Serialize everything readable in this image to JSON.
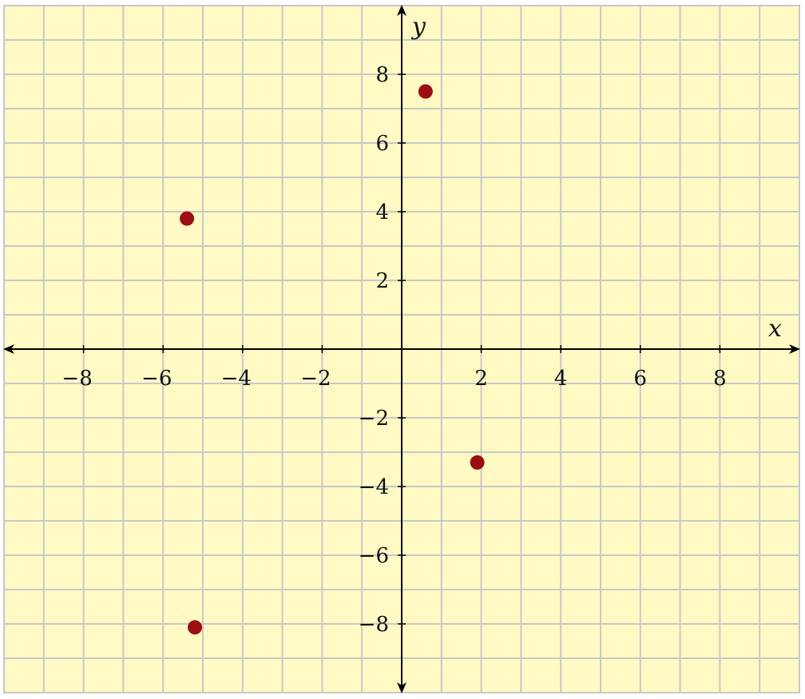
{
  "chart_data": {
    "type": "scatter",
    "xlabel": "x",
    "ylabel": "y",
    "xlim": [
      -10,
      10
    ],
    "ylim": [
      -10,
      10
    ],
    "x_ticks": [
      -8,
      -6,
      -4,
      -2,
      2,
      4,
      6,
      8
    ],
    "y_ticks": [
      -8,
      -6,
      -4,
      -2,
      2,
      4,
      6,
      8
    ],
    "x_tick_labels": [
      "−8",
      "−6",
      "−4",
      "−2",
      "2",
      "4",
      "6",
      "8"
    ],
    "y_tick_labels": [
      "−8",
      "−6",
      "−4",
      "−2",
      "2",
      "4",
      "6",
      "8"
    ],
    "minor_grid_step": 1,
    "grid": true,
    "points": [
      {
        "x": 0.6,
        "y": 7.5
      },
      {
        "x": -5.4,
        "y": 3.8
      },
      {
        "x": 1.9,
        "y": -3.3
      },
      {
        "x": -5.2,
        "y": -8.1
      }
    ],
    "colors": {
      "background": "#fff9c4",
      "grid": "#c8c8c8",
      "axis": "#000000",
      "point": "#9b0f12"
    }
  }
}
